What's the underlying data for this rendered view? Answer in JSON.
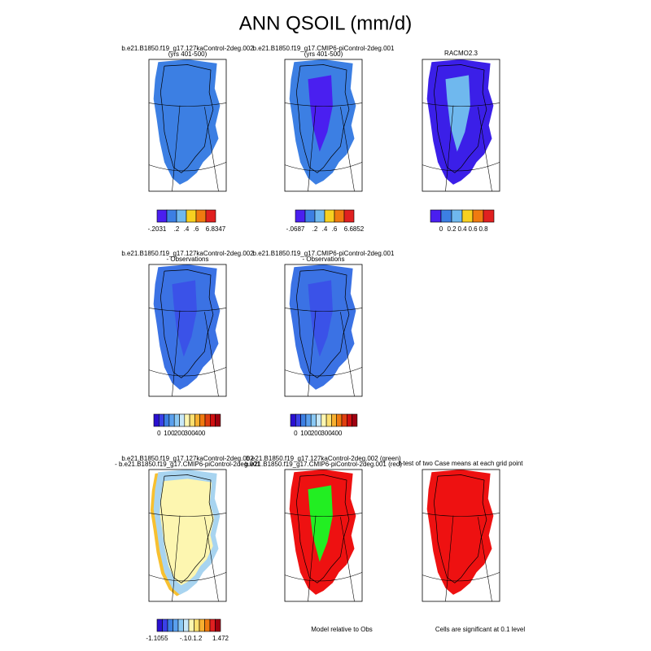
{
  "title": "ANN QSOIL (mm/d)",
  "panels": [
    {
      "lines": [
        "b.e21.B1850.f19_g17.127kaControl-2deg.002",
        "(yrs 401-500)"
      ]
    },
    {
      "lines": [
        "b.e21.B1850.f19_g17.CMIP6-piControl-2deg.001",
        "(yrs 401-500)"
      ]
    },
    {
      "lines": [
        "RACMO2.3"
      ]
    },
    {
      "lines": [
        "b.e21.B1850.f19_g17.127kaControl-2deg.002",
        "- Observations"
      ]
    },
    {
      "lines": [
        "b.e21.B1850.f19_g17.CMIP6-piControl-2deg.001",
        "- Observations"
      ]
    },
    {
      "lines": [
        "b.e21.B1850.f19_g17.127kaControl-2deg.002",
        "- b.e21.B1850.f19_g17.CMIP6-piControl-2deg.001"
      ]
    },
    {
      "lines": [
        "b.e21.B1850.f19_g17.127kaControl-2deg.002 (green)",
        "b.e21.B1850.f19_g17.CMIP6-piControl-2deg.001 (red)"
      ]
    },
    {
      "lines": [
        "t-test of two Case means at each grid point"
      ]
    }
  ],
  "colorbars": [
    {
      "labels": [
        "-.2031",
        ".2",
        ".4",
        ".6",
        "6.8347"
      ]
    },
    {
      "labels": [
        "-.0687",
        ".2",
        ".4",
        ".6",
        "6.6852"
      ]
    },
    {
      "labels": [
        "0",
        "0.2",
        "0.4",
        "0.6",
        "0.8"
      ]
    },
    {
      "labels": [
        "0",
        "100",
        "200",
        "300",
        "400"
      ]
    },
    {
      "labels": [
        "0",
        "100",
        "200",
        "300",
        "400"
      ]
    },
    {
      "labels": [
        "-1.1055",
        "-.1",
        ".0",
        ".1",
        ".2",
        "1.472"
      ]
    }
  ],
  "notes": [
    "Model relative to Obs",
    "Cells are significant at 0.1 level"
  ]
}
